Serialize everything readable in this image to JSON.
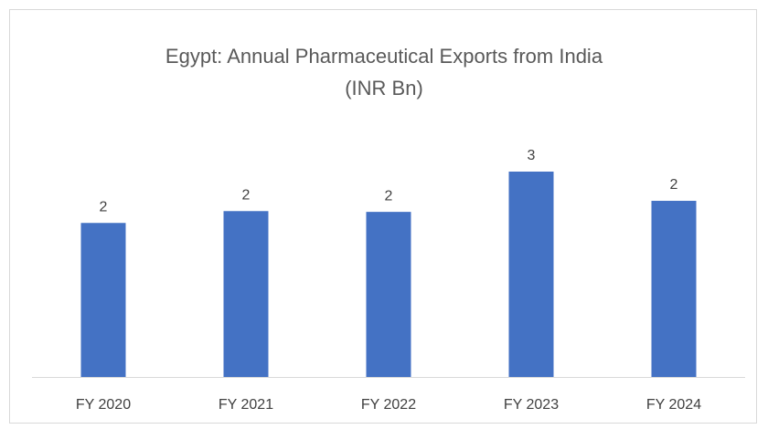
{
  "chart_data": {
    "type": "bar",
    "title": "Egypt: Annual Pharmaceutical Exports from India (INR Bn)",
    "categories": [
      "FY 2020",
      "FY 2021",
      "FY 2022",
      "FY 2023",
      "FY 2024"
    ],
    "values": [
      1.95,
      2.1,
      2.09,
      2.6,
      2.23
    ],
    "value_labels": [
      "2",
      "2",
      "2",
      "3",
      "2"
    ],
    "color": "#4472c4"
  }
}
